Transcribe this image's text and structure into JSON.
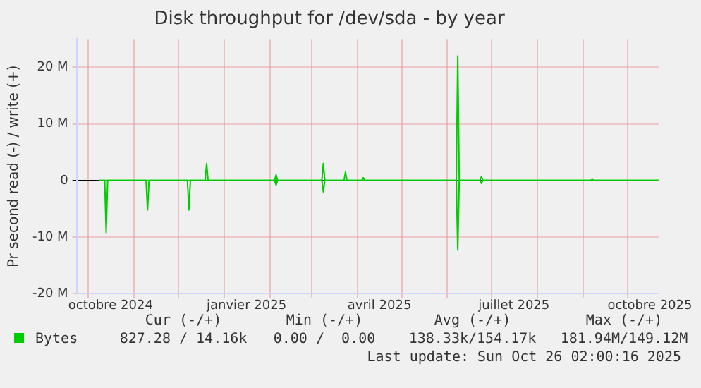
{
  "chart_data": {
    "type": "line",
    "title": "Disk throughput for /dev/sda - by year",
    "ylabel": "Pr second read (-) / write (+)",
    "xlim": [
      "2024-09-23",
      "2025-10-22"
    ],
    "xticks": [
      {
        "value": "2024-10-01",
        "label": null
      },
      {
        "value": "2024-10-16",
        "label": "octobre 2024"
      },
      {
        "value": "2024-11-01",
        "label": null
      },
      {
        "value": "2024-12-01",
        "label": null
      },
      {
        "value": "2025-01-01",
        "label": null
      },
      {
        "value": "2025-01-16",
        "label": "janvier 2025"
      },
      {
        "value": "2025-02-01",
        "label": null
      },
      {
        "value": "2025-03-01",
        "label": null
      },
      {
        "value": "2025-04-01",
        "label": null
      },
      {
        "value": "2025-04-16",
        "label": "avril 2025"
      },
      {
        "value": "2025-05-01",
        "label": null
      },
      {
        "value": "2025-06-01",
        "label": null
      },
      {
        "value": "2025-07-01",
        "label": null
      },
      {
        "value": "2025-07-16",
        "label": "juillet 2025"
      },
      {
        "value": "2025-08-01",
        "label": null
      },
      {
        "value": "2025-09-01",
        "label": null
      },
      {
        "value": "2025-10-01",
        "label": null
      },
      {
        "value": "2025-10-16",
        "label": "octobre 2025"
      }
    ],
    "ylim": [
      -20000000,
      25000000
    ],
    "yticks": [
      {
        "value": -20000000,
        "label": "-20 M"
      },
      {
        "value": -10000000,
        "label": "-10 M"
      },
      0,
      {
        "value": 10000000,
        "label": "10 M"
      },
      {
        "value": 20000000,
        "label": "20 M"
      }
    ],
    "grid": true,
    "legend": "bottom",
    "marker": "none",
    "line_style": "solid",
    "series": [
      {
        "name": "Bytes",
        "color": "#00cc00",
        "x": [
          "2024-10-08",
          "2024-12-19",
          "2024-12-20",
          "2024-12-21",
          "2025-02-04",
          "2025-02-05",
          "2025-02-06",
          "2025-03-08",
          "2025-03-09",
          "2025-03-10",
          "2025-03-23",
          "2025-03-24",
          "2025-03-25",
          "2025-04-04",
          "2025-04-05",
          "2025-04-06",
          "2025-06-07",
          "2025-06-08",
          "2025-06-09",
          "2025-06-23",
          "2025-06-24",
          "2025-06-25",
          "2025-09-06",
          "2025-09-07",
          "2025-09-08",
          "2025-10-22"
        ],
        "values": [
          0,
          0,
          3000000,
          0,
          0,
          1000000,
          0,
          0,
          3000000,
          0,
          0,
          1500000,
          0,
          0,
          500000,
          0,
          0,
          22000000,
          0,
          0,
          700000,
          0,
          0,
          200000,
          0,
          0
        ]
      },
      {
        "color": "#00cc00",
        "x": [
          "2024-10-08",
          "2024-10-12",
          "2024-10-13",
          "2024-10-14",
          "2024-11-09",
          "2024-11-10",
          "2024-11-11",
          "2024-12-07",
          "2024-12-08",
          "2024-12-09",
          "2025-02-04",
          "2025-02-05",
          "2025-02-06",
          "2025-03-08",
          "2025-03-09",
          "2025-03-10",
          "2025-06-07",
          "2025-06-08",
          "2025-06-09",
          "2025-06-23",
          "2025-06-24",
          "2025-06-25",
          "2025-10-22"
        ],
        "values": [
          0,
          0,
          -9200000,
          0,
          0,
          -5200000,
          0,
          0,
          -5200000,
          0,
          0,
          -800000,
          0,
          0,
          -2000000,
          0,
          0,
          -12300000,
          0,
          0,
          -500000,
          0,
          0
        ]
      }
    ],
    "annotations": [
      "Cur (-/+)",
      "Min (-/+)",
      "Avg (-/+)",
      "Max (-/+)",
      "827.28 / 14.16k",
      "0.00 /  0.00",
      "138.33k/154.17k",
      "181.94M/149.12M",
      "Last update: Sun Oct 26 02:00:16 2025"
    ]
  }
}
